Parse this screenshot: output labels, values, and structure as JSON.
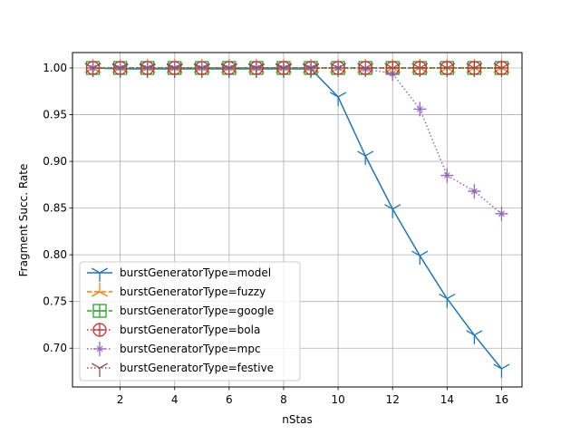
{
  "chart_data": {
    "type": "line",
    "title": "",
    "xlabel": "nStas",
    "ylabel": "Fragment Succ. Rate",
    "xlim": [
      0.25,
      16.75
    ],
    "ylim": [
      0.6585,
      1.0165
    ],
    "grid": true,
    "legend_position": "lower-left",
    "x": [
      1,
      2,
      3,
      4,
      5,
      6,
      7,
      8,
      9,
      10,
      11,
      12,
      13,
      14,
      15,
      16
    ],
    "xticks": [
      2,
      4,
      6,
      8,
      10,
      12,
      14,
      16
    ],
    "xtick_labels": [
      "2",
      "4",
      "6",
      "8",
      "10",
      "12",
      "14",
      "16"
    ],
    "yticks": [
      0.7,
      0.75,
      0.8,
      0.85,
      0.9,
      0.95,
      1.0
    ],
    "ytick_labels": [
      "0.70",
      "0.75",
      "0.80",
      "0.85",
      "0.90",
      "0.95",
      "1.00"
    ],
    "series": [
      {
        "name": "burstGeneratorType=model",
        "color": "#1f77b4",
        "linestyle": "solid",
        "marker": "tri-down",
        "values": [
          1.0,
          0.999,
          0.999,
          0.999,
          0.999,
          0.999,
          0.999,
          0.999,
          0.999,
          0.969,
          0.906,
          0.849,
          0.799,
          0.753,
          0.714,
          0.678
        ]
      },
      {
        "name": "burstGeneratorType=fuzzy",
        "color": "#ff7f0e",
        "linestyle": "dashed",
        "marker": "tri-up",
        "values": [
          1.0,
          1.0,
          1.0,
          1.0,
          1.0,
          1.0,
          1.0,
          1.0,
          1.0,
          1.0,
          1.0,
          1.0,
          1.0,
          1.0,
          1.0,
          1.0
        ]
      },
      {
        "name": "burstGeneratorType=google",
        "color": "#2ca02c",
        "linestyle": "dashed",
        "marker": "square-plus",
        "values": [
          1.0,
          1.0,
          1.0,
          1.0,
          1.0,
          1.0,
          1.0,
          1.0,
          1.0,
          1.0,
          1.0,
          1.0,
          1.0,
          1.0,
          1.0,
          1.0
        ]
      },
      {
        "name": "burstGeneratorType=bola",
        "color": "#d62728",
        "linestyle": "dotted",
        "marker": "circle-plus",
        "values": [
          1.0,
          1.0,
          1.0,
          1.0,
          1.0,
          1.0,
          1.0,
          1.0,
          1.0,
          1.0,
          1.0,
          1.0,
          1.0,
          1.0,
          1.0,
          1.0
        ]
      },
      {
        "name": "burstGeneratorType=mpc",
        "color": "#9467bd",
        "linestyle": "dotted",
        "marker": "star-plus",
        "values": [
          1.0,
          1.0,
          1.0,
          1.0,
          1.0,
          1.0,
          1.0,
          1.0,
          1.0,
          1.0,
          0.999,
          0.994,
          0.956,
          0.885,
          0.868,
          0.844
        ]
      },
      {
        "name": "burstGeneratorType=festive",
        "color": "#8c564b",
        "linestyle": "dotted",
        "marker": "tri-down",
        "values": [
          1.0,
          1.0,
          1.0,
          1.0,
          1.0,
          1.0,
          1.0,
          1.0,
          1.0,
          1.0,
          1.0,
          1.0,
          1.0,
          1.0,
          1.0,
          1.0
        ]
      }
    ]
  }
}
